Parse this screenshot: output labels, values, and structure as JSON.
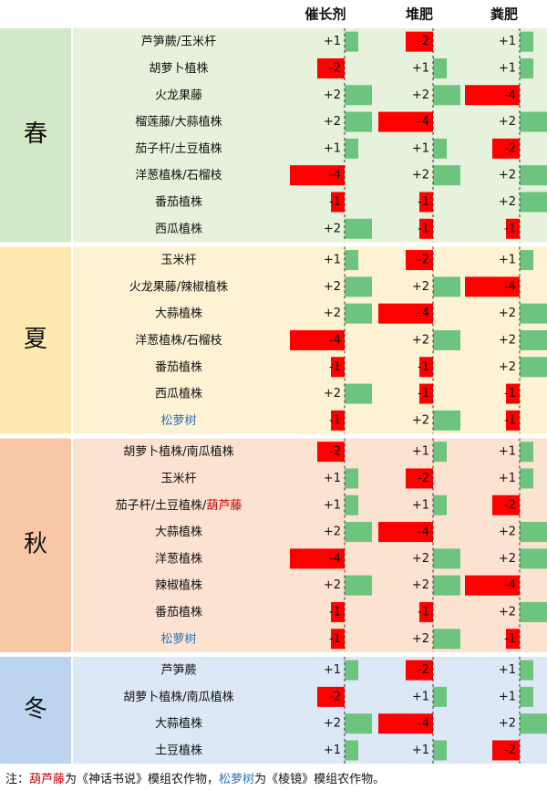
{
  "columns": [
    "催长剂",
    "堆肥",
    "粪肥"
  ],
  "positive_color": "#6cc47e",
  "negative_color": "#ff0000",
  "seasons": [
    {
      "label": "春",
      "label_bg": "#d3e8c6",
      "row_bg": "#e6f2dc",
      "rows": [
        {
          "name": [
            {
              "text": "芦笋蕨/玉米杆"
            }
          ],
          "values": [
            1,
            -2,
            1
          ],
          "value_labels": [
            "+1",
            "-2",
            "+1"
          ]
        },
        {
          "name": [
            {
              "text": "胡萝卜植株"
            }
          ],
          "values": [
            -2,
            1,
            1
          ],
          "value_labels": [
            "-2",
            "+1",
            "+1"
          ]
        },
        {
          "name": [
            {
              "text": "火龙果藤"
            }
          ],
          "values": [
            2,
            2,
            -4
          ],
          "value_labels": [
            "+2",
            "+2",
            "-4"
          ]
        },
        {
          "name": [
            {
              "text": "榴莲藤/大蒜植株"
            }
          ],
          "values": [
            2,
            -4,
            2
          ],
          "value_labels": [
            "+2",
            "-4",
            "+2"
          ]
        },
        {
          "name": [
            {
              "text": "茄子杆/土豆植株"
            }
          ],
          "values": [
            1,
            1,
            -2
          ],
          "value_labels": [
            "+1",
            "+1",
            "-2"
          ]
        },
        {
          "name": [
            {
              "text": "洋葱植株/石榴枝"
            }
          ],
          "values": [
            -4,
            2,
            2
          ],
          "value_labels": [
            "-4",
            "+2",
            "+2"
          ]
        },
        {
          "name": [
            {
              "text": "番茄植株"
            }
          ],
          "values": [
            -1,
            -1,
            2
          ],
          "value_labels": [
            "-1",
            "-1",
            "+2"
          ]
        },
        {
          "name": [
            {
              "text": "西瓜植株"
            }
          ],
          "values": [
            2,
            -1,
            -1
          ],
          "value_labels": [
            "+2",
            "-1",
            "-1"
          ]
        }
      ]
    },
    {
      "label": "夏",
      "label_bg": "#fce8b0",
      "row_bg": "#fdf2d4",
      "rows": [
        {
          "name": [
            {
              "text": "玉米杆"
            }
          ],
          "values": [
            1,
            -2,
            1
          ],
          "value_labels": [
            "+1",
            "-2",
            "+1"
          ]
        },
        {
          "name": [
            {
              "text": "火龙果藤/辣椒植株"
            }
          ],
          "values": [
            2,
            2,
            -4
          ],
          "value_labels": [
            "+2",
            "+2",
            "-4"
          ]
        },
        {
          "name": [
            {
              "text": "大蒜植株"
            }
          ],
          "values": [
            2,
            -4,
            2
          ],
          "value_labels": [
            "+2",
            "-4",
            "+2"
          ]
        },
        {
          "name": [
            {
              "text": "洋葱植株/石榴枝"
            }
          ],
          "values": [
            -4,
            2,
            2
          ],
          "value_labels": [
            "-4",
            "+2",
            "+2"
          ]
        },
        {
          "name": [
            {
              "text": "番茄植株"
            }
          ],
          "values": [
            -1,
            -1,
            2
          ],
          "value_labels": [
            "-1",
            "-1",
            "+2"
          ]
        },
        {
          "name": [
            {
              "text": "西瓜植株"
            }
          ],
          "values": [
            2,
            -1,
            -1
          ],
          "value_labels": [
            "+2",
            "-1",
            "-1"
          ]
        },
        {
          "name": [
            {
              "text": "松萝树",
              "color": "#2e75b6"
            }
          ],
          "values": [
            -1,
            2,
            -1
          ],
          "value_labels": [
            "-1",
            "+2",
            "-1"
          ]
        }
      ]
    },
    {
      "label": "秋",
      "label_bg": "#f8c8a6",
      "row_bg": "#fce2d1",
      "rows": [
        {
          "name": [
            {
              "text": "胡萝卜植株/南瓜植株"
            }
          ],
          "values": [
            -2,
            1,
            1
          ],
          "value_labels": [
            "-2",
            "+1",
            "+1"
          ]
        },
        {
          "name": [
            {
              "text": "玉米杆"
            }
          ],
          "values": [
            1,
            -2,
            1
          ],
          "value_labels": [
            "+1",
            "-2",
            "+1"
          ]
        },
        {
          "name": [
            {
              "text": "茄子杆/土豆植株/"
            },
            {
              "text": "葫芦藤",
              "color": "#c00000"
            }
          ],
          "values": [
            1,
            1,
            -2
          ],
          "value_labels": [
            "+1",
            "+1",
            "-2"
          ]
        },
        {
          "name": [
            {
              "text": "大蒜植株"
            }
          ],
          "values": [
            2,
            -4,
            2
          ],
          "value_labels": [
            "+2",
            "-4",
            "+2"
          ]
        },
        {
          "name": [
            {
              "text": "洋葱植株"
            }
          ],
          "values": [
            -4,
            2,
            2
          ],
          "value_labels": [
            "-4",
            "+2",
            "+2"
          ]
        },
        {
          "name": [
            {
              "text": "辣椒植株"
            }
          ],
          "values": [
            2,
            2,
            -4
          ],
          "value_labels": [
            "+2",
            "+2",
            "-4"
          ]
        },
        {
          "name": [
            {
              "text": "番茄植株"
            }
          ],
          "values": [
            -1,
            -1,
            2
          ],
          "value_labels": [
            "-1",
            "-1",
            "+2"
          ]
        },
        {
          "name": [
            {
              "text": "松萝树",
              "color": "#2e75b6"
            }
          ],
          "values": [
            -1,
            2,
            -1
          ],
          "value_labels": [
            "-1",
            "+2",
            "-1"
          ]
        }
      ]
    },
    {
      "label": "冬",
      "label_bg": "#bcd4ee",
      "row_bg": "#dce8f6",
      "rows": [
        {
          "name": [
            {
              "text": "芦笋蕨"
            }
          ],
          "values": [
            1,
            -2,
            1
          ],
          "value_labels": [
            "+1",
            "-2",
            "+1"
          ]
        },
        {
          "name": [
            {
              "text": "胡萝卜植株/南瓜植株"
            }
          ],
          "values": [
            -2,
            1,
            1
          ],
          "value_labels": [
            "-2",
            "+1",
            "+1"
          ]
        },
        {
          "name": [
            {
              "text": "大蒜植株"
            }
          ],
          "values": [
            2,
            -4,
            2
          ],
          "value_labels": [
            "+2",
            "-4",
            "+2"
          ]
        },
        {
          "name": [
            {
              "text": "土豆植株"
            }
          ],
          "values": [
            1,
            1,
            -2
          ],
          "value_labels": [
            "+1",
            "+1",
            "-2"
          ]
        }
      ]
    }
  ],
  "note": [
    {
      "text": "注："
    },
    {
      "text": "葫芦藤",
      "color": "#c00000"
    },
    {
      "text": "为《神话书说》模组农作物，"
    },
    {
      "text": "松萝树",
      "color": "#2e75b6"
    },
    {
      "text": "为《棱镜》模组农作物。"
    }
  ]
}
